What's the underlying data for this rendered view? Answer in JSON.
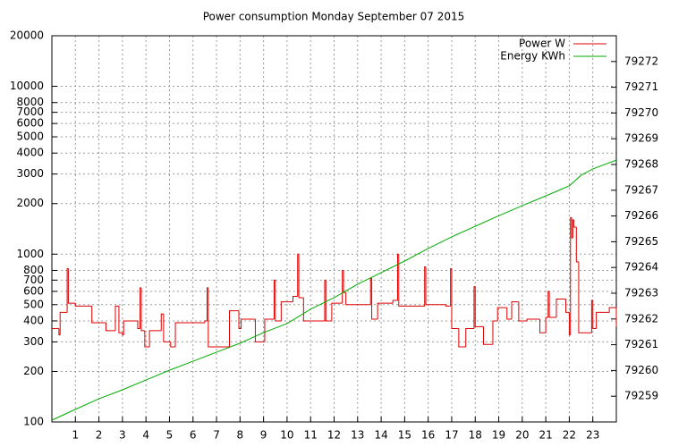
{
  "chart_data": {
    "type": "line",
    "title": "Power consumption Monday September 07 2015",
    "xlim": [
      0,
      24
    ],
    "xticks": [
      1,
      2,
      3,
      4,
      5,
      6,
      7,
      8,
      9,
      10,
      11,
      12,
      13,
      14,
      15,
      16,
      17,
      18,
      19,
      20,
      21,
      22,
      23
    ],
    "ylim": [
      100,
      20000
    ],
    "yscale": "log",
    "yticks": [
      100,
      200,
      300,
      400,
      500,
      600,
      700,
      800,
      1000,
      2000,
      3000,
      4000,
      5000,
      6000,
      7000,
      8000,
      10000,
      20000
    ],
    "y2lim": [
      79258,
      79273
    ],
    "y2ticks": [
      79259,
      79260,
      79261,
      79262,
      79263,
      79264,
      79265,
      79266,
      79267,
      79268,
      79269,
      79270,
      79271,
      79272
    ],
    "grid": true,
    "legend": "top-right",
    "series": [
      {
        "name": "Power W",
        "color": "#dd0000",
        "step": true,
        "x": [
          0,
          0.3,
          0.35,
          0.65,
          0.7,
          1,
          1.7,
          2.3,
          2.7,
          2.85,
          3.0,
          3.05,
          3.65,
          3.75,
          3.8,
          3.95,
          4.15,
          4.65,
          4.75,
          5.05,
          5.25,
          6.5,
          6.6,
          6.65,
          7.55,
          7.95,
          8.05,
          8.65,
          9.05,
          9.45,
          9.5,
          9.75,
          10.25,
          10.45,
          10.5,
          10.7,
          11.6,
          11.65,
          11.9,
          12.35,
          12.4,
          12.5,
          13.55,
          13.6,
          13.85,
          14.5,
          14.7,
          14.75,
          15.85,
          15.9,
          16.75,
          16.95,
          17.0,
          17.3,
          17.6,
          17.95,
          18.0,
          18.35,
          18.75,
          18.95,
          19.35,
          19.55,
          19.85,
          20.2,
          20.75,
          21.0,
          21.1,
          21.15,
          21.45,
          21.85,
          22.0,
          22.05,
          22.1,
          22.15,
          22.2,
          22.3,
          22.4,
          22.95,
          23.0,
          23.15,
          23.7,
          24
        ],
        "values": [
          360,
          330,
          450,
          820,
          510,
          490,
          390,
          350,
          490,
          340,
          330,
          400,
          360,
          630,
          350,
          280,
          350,
          440,
          300,
          280,
          390,
          400,
          630,
          280,
          460,
          360,
          410,
          300,
          410,
          700,
          400,
          520,
          560,
          1000,
          550,
          400,
          700,
          400,
          510,
          800,
          590,
          500,
          720,
          410,
          510,
          530,
          1000,
          490,
          840,
          500,
          490,
          820,
          360,
          280,
          360,
          640,
          370,
          290,
          400,
          480,
          410,
          520,
          400,
          410,
          340,
          420,
          600,
          420,
          540,
          450,
          330,
          1650,
          1250,
          1600,
          1450,
          900,
          340,
          530,
          360,
          450,
          480,
          370
        ]
      },
      {
        "name": "Energy KWh",
        "color": "#00aa00",
        "axis": "y2",
        "x": [
          0,
          1,
          2,
          3,
          4,
          5,
          6,
          7,
          8,
          9,
          10,
          11,
          12,
          13,
          14,
          15,
          16,
          17,
          18,
          19,
          20,
          21,
          22,
          22.5,
          23,
          24
        ],
        "values": [
          79258.07,
          79258.49,
          79258.9,
          79259.25,
          79259.63,
          79260.01,
          79260.36,
          79260.71,
          79261.06,
          79261.47,
          79261.82,
          79262.38,
          79262.83,
          79263.35,
          79263.8,
          79264.25,
          79264.74,
          79265.19,
          79265.6,
          79266.01,
          79266.4,
          79266.78,
          79267.17,
          79267.58,
          79267.83,
          79268.17
        ]
      }
    ]
  }
}
